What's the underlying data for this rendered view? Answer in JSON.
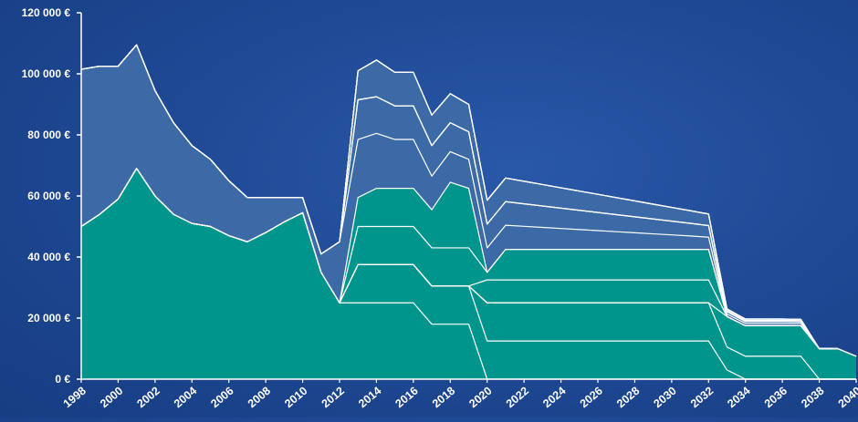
{
  "chart_data": {
    "type": "area",
    "stacked": true,
    "title": "",
    "xlabel": "",
    "ylabel": "",
    "x": [
      1998,
      1999,
      2000,
      2001,
      2002,
      2003,
      2004,
      2005,
      2006,
      2007,
      2008,
      2009,
      2010,
      2011,
      2012,
      2013,
      2014,
      2015,
      2016,
      2017,
      2018,
      2019,
      2020,
      2021,
      2022,
      2023,
      2024,
      2025,
      2026,
      2027,
      2028,
      2029,
      2030,
      2031,
      2032,
      2033,
      2034,
      2035,
      2036,
      2037,
      2038,
      2039,
      2040
    ],
    "xticks": [
      "1998",
      "2000",
      "2002",
      "2004",
      "2006",
      "2008",
      "2010",
      "2012",
      "2014",
      "2016",
      "2018",
      "2020",
      "2022",
      "2024",
      "2026",
      "2028",
      "2030",
      "2032",
      "2034",
      "2036",
      "2038",
      "2040"
    ],
    "ylim": [
      0,
      120000
    ],
    "yticks": [
      "0 €",
      "20 000 €",
      "40 000 €",
      "60 000 €",
      "80 000 €",
      "100 000 €",
      "120 000 €"
    ],
    "series": [
      {
        "values": [
          50000,
          54000,
          59000,
          69000,
          60000,
          54000,
          51000,
          50000,
          47000,
          45000,
          48000,
          51500,
          54500,
          35000,
          25000,
          25000,
          25000,
          25000,
          25000,
          18000,
          18000,
          18000,
          0,
          0,
          0,
          0,
          0,
          0,
          0,
          0,
          0,
          0,
          0,
          0,
          0,
          0,
          0,
          0,
          0,
          0,
          0,
          0,
          0
        ],
        "color": "#00958c"
      },
      {
        "values": [
          0,
          0,
          0,
          0,
          0,
          0,
          0,
          0,
          0,
          0,
          0,
          0,
          0,
          0,
          0,
          12500,
          12500,
          12500,
          12500,
          12500,
          12500,
          12500,
          12500,
          12500,
          12500,
          12500,
          12500,
          12500,
          12500,
          12500,
          12500,
          12500,
          12500,
          12500,
          12500,
          3000,
          0,
          0,
          0,
          0,
          0,
          0,
          0
        ],
        "color": "#00958c"
      },
      {
        "values": [
          0,
          0,
          0,
          0,
          0,
          0,
          0,
          0,
          0,
          0,
          0,
          0,
          0,
          0,
          0,
          0,
          0,
          0,
          0,
          0,
          0,
          0,
          12500,
          12500,
          12500,
          12500,
          12500,
          12500,
          12500,
          12500,
          12500,
          12500,
          12500,
          12500,
          12500,
          7500,
          7500,
          7500,
          7500,
          7500,
          0,
          0,
          0
        ],
        "color": "#00958c"
      },
      {
        "values": [
          0,
          0,
          0,
          0,
          0,
          0,
          0,
          0,
          0,
          0,
          0,
          0,
          0,
          0,
          0,
          0,
          0,
          0,
          0,
          0,
          0,
          0,
          0,
          0,
          0,
          0,
          0,
          0,
          0,
          0,
          0,
          0,
          0,
          0,
          0,
          10000,
          10000,
          10000,
          10000,
          10000,
          10000,
          10000,
          7500
        ],
        "color": "#00958c"
      },
      {
        "values": [
          0,
          0,
          0,
          0,
          0,
          0,
          0,
          0,
          0,
          0,
          0,
          0,
          0,
          0,
          0,
          0,
          0,
          0,
          0,
          0,
          0,
          0,
          7500,
          7500,
          7500,
          7500,
          7500,
          7500,
          7500,
          7500,
          7500,
          7500,
          7500,
          7500,
          7500,
          0,
          0,
          0,
          0,
          0,
          0,
          0,
          0
        ],
        "color": "#00958c"
      },
      {
        "values": [
          0,
          0,
          0,
          0,
          0,
          0,
          0,
          0,
          0,
          0,
          0,
          0,
          0,
          0,
          0,
          12500,
          12500,
          12500,
          12500,
          12500,
          12500,
          12500,
          2500,
          10000,
          10000,
          10000,
          10000,
          10000,
          10000,
          10000,
          10000,
          10000,
          10000,
          10000,
          10000,
          0,
          0,
          0,
          0,
          0,
          0,
          0,
          0
        ],
        "color": "#00958c"
      },
      {
        "values": [
          0,
          0,
          0,
          0,
          0,
          0,
          0,
          0,
          0,
          0,
          0,
          0,
          0,
          0,
          0,
          9500,
          12500,
          12500,
          12500,
          12500,
          21500,
          19500,
          0,
          0,
          0,
          0,
          0,
          0,
          0,
          0,
          0,
          0,
          0,
          0,
          0,
          0,
          0,
          0,
          0,
          0,
          0,
          0,
          0
        ],
        "color": "#00958c"
      },
      {
        "values": [
          51500,
          48500,
          43500,
          40500,
          34500,
          30000,
          25500,
          22000,
          18000,
          14500,
          11500,
          8000,
          5000,
          6000,
          20000,
          19000,
          18000,
          16000,
          16000,
          11000,
          10000,
          9500,
          8000,
          7900,
          7550,
          7200,
          6850,
          6500,
          6150,
          5800,
          5450,
          5100,
          4750,
          4400,
          4000,
          0,
          0,
          0,
          0,
          0,
          0,
          0,
          0
        ],
        "color": "#3b6aa6"
      },
      {
        "values": [
          0,
          0,
          0,
          0,
          0,
          0,
          0,
          0,
          0,
          0,
          0,
          0,
          0,
          0,
          0,
          13000,
          12000,
          11000,
          11000,
          10000,
          9500,
          9000,
          7800,
          7740,
          7380,
          7020,
          6660,
          6300,
          5940,
          5580,
          5220,
          4860,
          4500,
          4140,
          3800,
          0,
          0,
          0,
          0,
          0,
          0,
          0,
          0
        ],
        "color": "#3b6aa6"
      },
      {
        "values": [
          0,
          0,
          0,
          0,
          0,
          0,
          0,
          0,
          0,
          0,
          0,
          0,
          0,
          0,
          0,
          0,
          0,
          0,
          0,
          0,
          0,
          0,
          0,
          0,
          0,
          0,
          0,
          0,
          0,
          0,
          0,
          0,
          0,
          0,
          0,
          800,
          800,
          800,
          800,
          800,
          0,
          0,
          0
        ],
        "color": "#3b6aa6"
      },
      {
        "values": [
          0,
          0,
          0,
          0,
          0,
          0,
          0,
          0,
          0,
          0,
          0,
          0,
          0,
          0,
          0,
          0,
          0,
          0,
          0,
          0,
          0,
          0,
          0,
          0,
          0,
          0,
          0,
          0,
          0,
          0,
          0,
          0,
          0,
          0,
          0,
          800,
          600,
          600,
          600,
          500,
          0,
          0,
          0
        ],
        "color": "#3b6aa6"
      },
      {
        "values": [
          0,
          0,
          0,
          0,
          0,
          0,
          0,
          0,
          0,
          0,
          0,
          0,
          0,
          0,
          0,
          9500,
          12000,
          11000,
          11000,
          10000,
          9500,
          9000,
          7800,
          7740,
          7380,
          7020,
          6660,
          6300,
          5940,
          5580,
          5220,
          4860,
          4500,
          4140,
          3800,
          0,
          0,
          0,
          0,
          0,
          0,
          0,
          0
        ],
        "color": "#3b6aa6"
      },
      {
        "values": [
          0,
          0,
          0,
          0,
          0,
          0,
          0,
          0,
          0,
          0,
          0,
          0,
          0,
          0,
          0,
          0,
          0,
          0,
          0,
          0,
          0,
          0,
          0,
          0,
          0,
          0,
          0,
          0,
          0,
          0,
          0,
          0,
          0,
          0,
          0,
          400,
          400,
          400,
          400,
          400,
          0,
          0,
          0
        ],
        "color": "#3b6aa6"
      },
      {
        "values": [
          0,
          0,
          0,
          0,
          0,
          0,
          0,
          0,
          0,
          0,
          0,
          0,
          0,
          0,
          0,
          0,
          0,
          0,
          0,
          0,
          0,
          0,
          0,
          0,
          0,
          0,
          0,
          0,
          0,
          0,
          0,
          0,
          0,
          0,
          0,
          500,
          400,
          400,
          400,
          400,
          0,
          0,
          0
        ],
        "color": "#3b6aa6"
      },
      {
        "values": [
          0,
          0,
          0,
          0,
          0,
          0,
          0,
          0,
          0,
          0,
          0,
          0,
          0,
          0,
          0,
          0,
          0,
          0,
          0,
          0,
          0,
          0,
          0,
          0,
          0,
          0,
          0,
          0,
          0,
          0,
          0,
          0,
          0,
          0,
          0,
          0,
          0,
          0,
          0,
          0,
          0,
          0,
          0
        ],
        "color": "#3b6aa6"
      },
      {
        "values": [
          0,
          0,
          0,
          0,
          0,
          0,
          0,
          0,
          0,
          0,
          0,
          0,
          0,
          0,
          0,
          0,
          0,
          0,
          0,
          0,
          0,
          0,
          0,
          0,
          0,
          0,
          0,
          0,
          0,
          0,
          0,
          0,
          0,
          0,
          0,
          0,
          0,
          0,
          0,
          0,
          0,
          0,
          0
        ],
        "color": "#3b6aa6"
      }
    ],
    "grid": false,
    "legend": "none"
  }
}
